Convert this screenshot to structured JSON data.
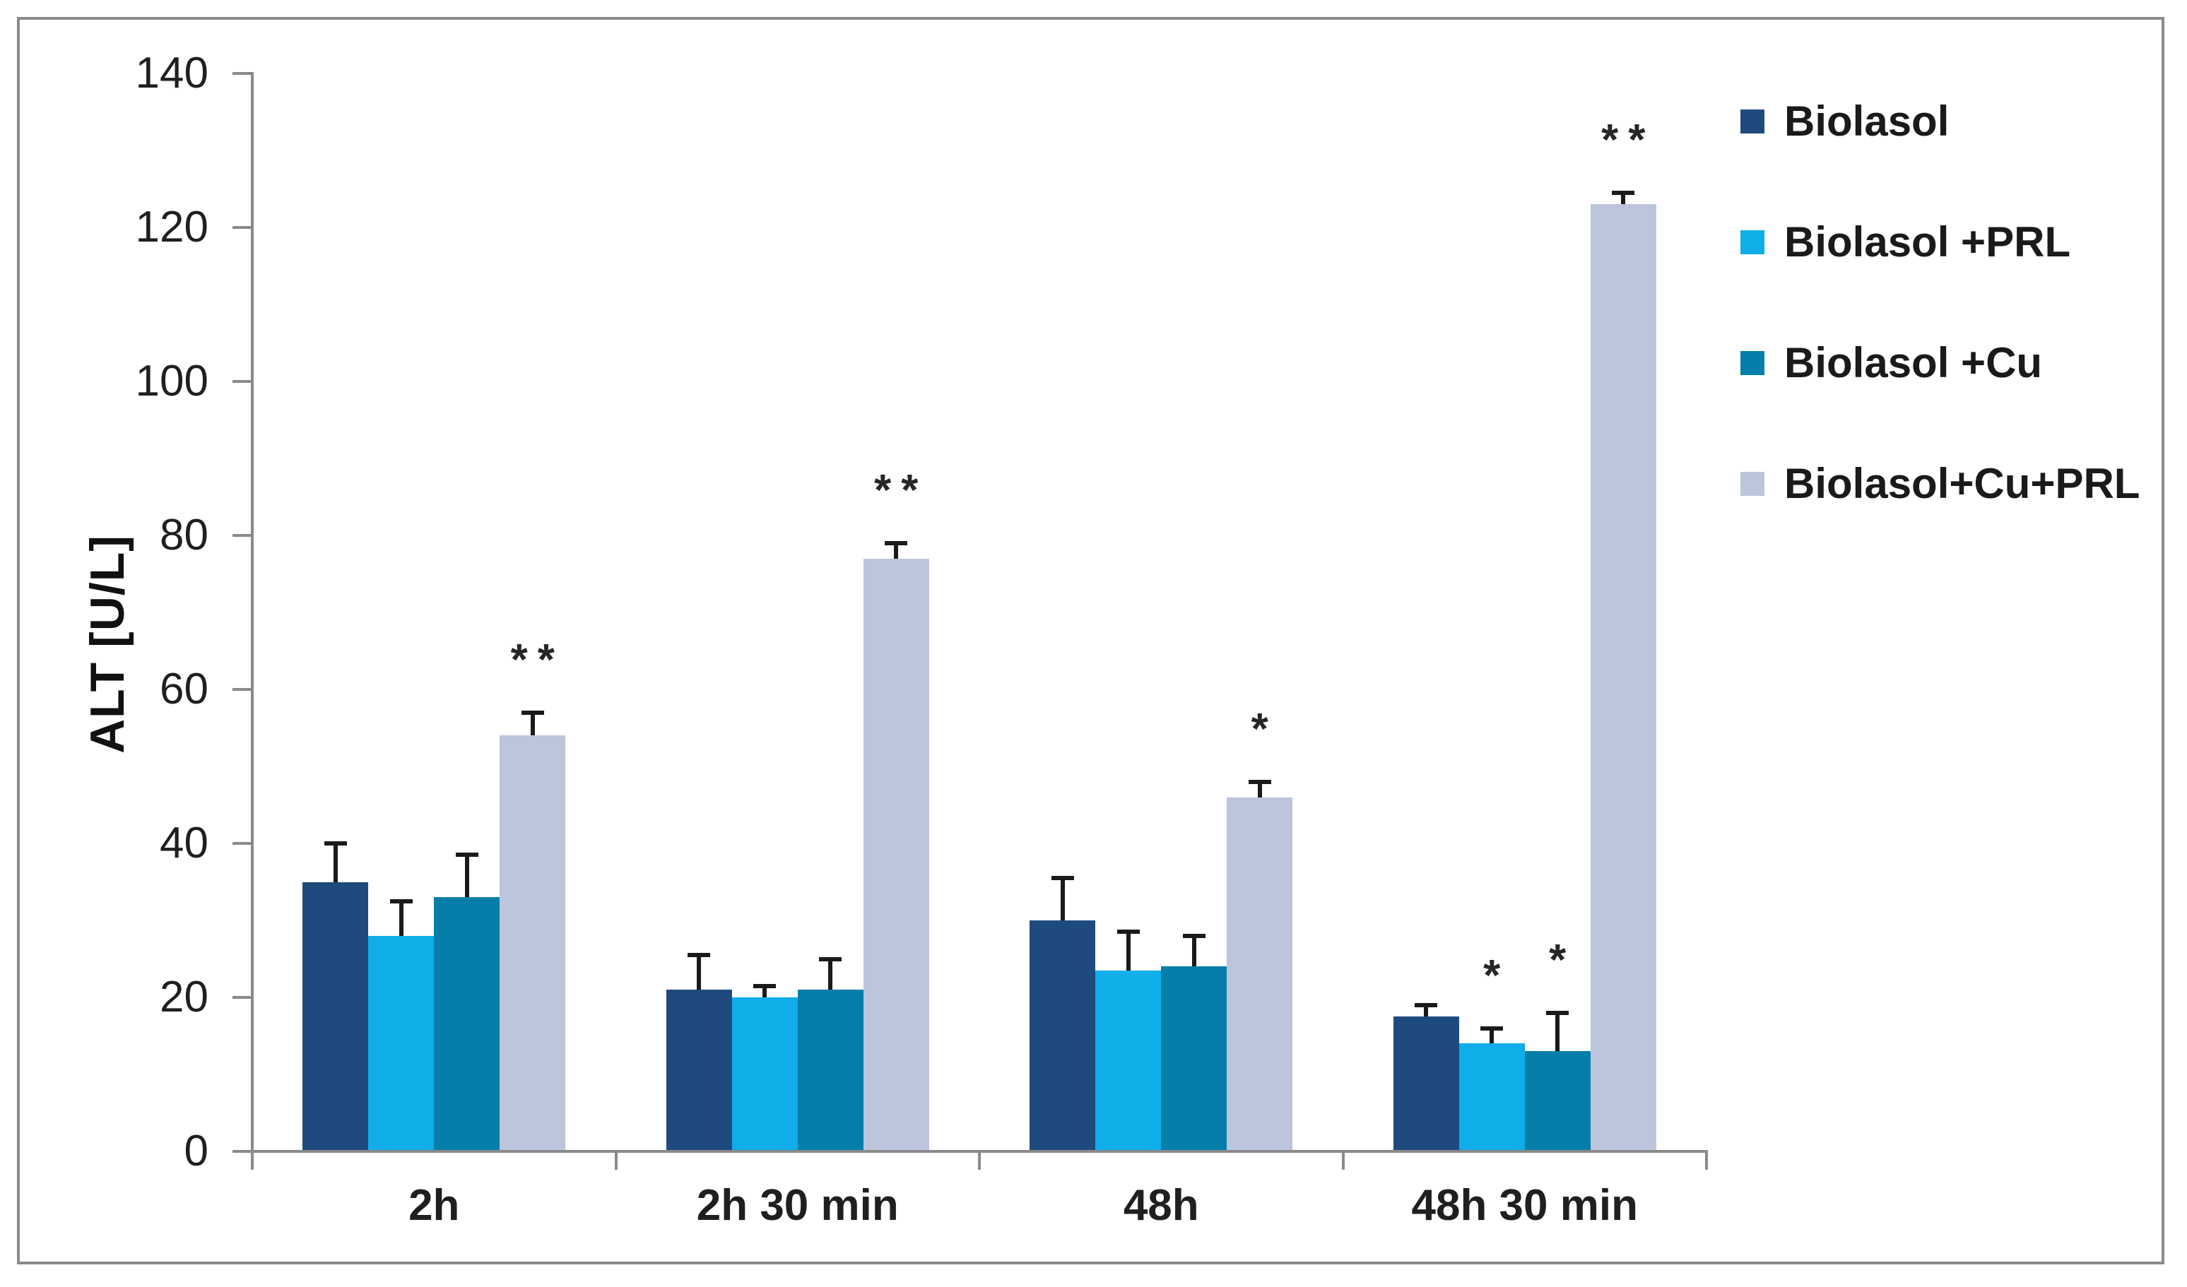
{
  "chart_data": {
    "type": "bar",
    "title": "",
    "xlabel": "",
    "ylabel": "ALT [U/L]",
    "ylim": [
      0,
      140
    ],
    "ytick_step": 20,
    "yticks": [
      0,
      20,
      40,
      60,
      80,
      100,
      120,
      140
    ],
    "grid": false,
    "legend_position": "right",
    "categories": [
      "2h",
      "2h 30 min",
      "48h",
      "48h 30 min"
    ],
    "series": [
      {
        "name": "Biolasol",
        "color": "#1F4A7D",
        "values": [
          35,
          21,
          30,
          17.5
        ],
        "errors": [
          5,
          4.5,
          5.5,
          1.5
        ],
        "sig": [
          "",
          "",
          "",
          ""
        ]
      },
      {
        "name": "Biolasol +PRL",
        "color": "#0FAEE9",
        "values": [
          28,
          20,
          23.5,
          14
        ],
        "errors": [
          4.5,
          1.5,
          5,
          2
        ],
        "sig": [
          "",
          "",
          "",
          "*"
        ]
      },
      {
        "name": "Biolasol +Cu",
        "color": "#057FA9",
        "values": [
          33,
          21,
          24,
          13
        ],
        "errors": [
          5.5,
          4,
          4,
          5
        ],
        "sig": [
          "",
          "",
          "",
          "*"
        ]
      },
      {
        "name": "Biolasol+Cu+PRL",
        "color": "#BCC5DC",
        "values": [
          54,
          77,
          46,
          123
        ],
        "errors": [
          3,
          2,
          2,
          1.5
        ],
        "sig": [
          "**",
          "**",
          "*",
          "**"
        ]
      }
    ],
    "error_bar_color": "#1a1a1a",
    "axis_color": "#8a8a8a",
    "text_color": "#1f1f1f"
  }
}
